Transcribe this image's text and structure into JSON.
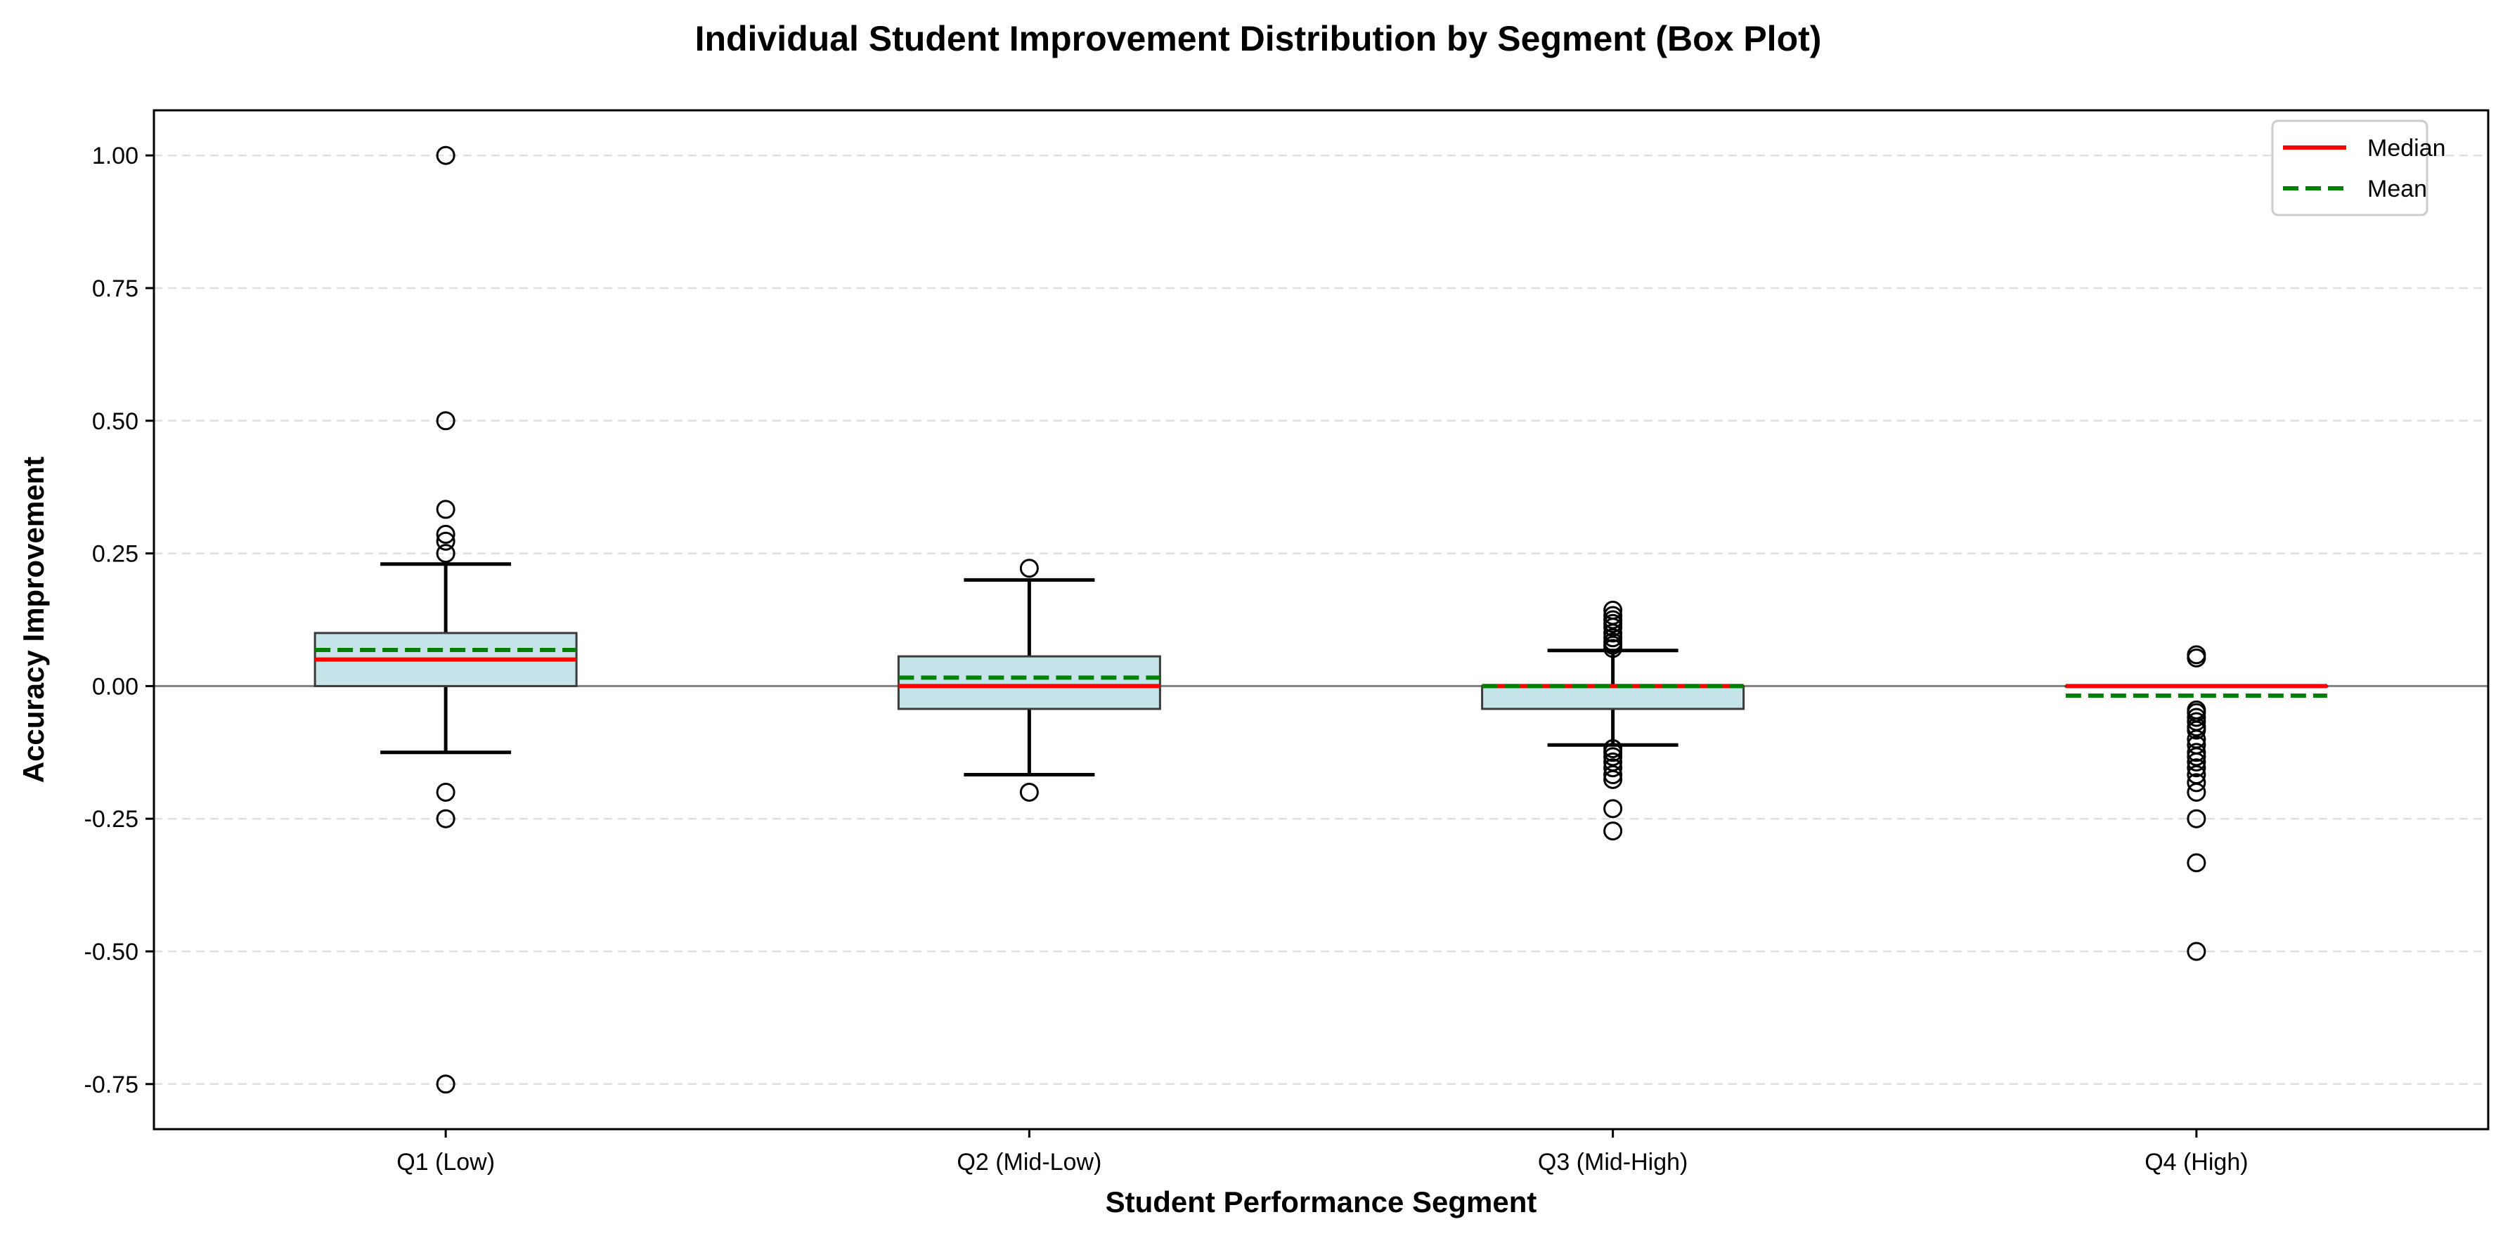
{
  "chart_data": {
    "type": "box",
    "title": "Individual Student Improvement Distribution by Segment (Box Plot)",
    "xlabel": "Student Performance Segment",
    "ylabel": "Accuracy Improvement",
    "ylim": [
      -0.835,
      1.085
    ],
    "yticks": [
      1.0,
      0.75,
      0.5,
      0.25,
      0.0,
      -0.25,
      -0.5,
      -0.75
    ],
    "ytick_labels": [
      "1.00",
      "0.75",
      "0.50",
      "0.25",
      "0.00",
      "-0.25",
      "-0.50",
      "-0.75"
    ],
    "grid": "y-dashed",
    "reference_line": 0.0,
    "legend": {
      "placement": "top-right",
      "entries": [
        {
          "label": "Median",
          "color": "#ff0000",
          "style": "solid"
        },
        {
          "label": "Mean",
          "color": "#008000",
          "style": "dashed"
        }
      ]
    },
    "colors": {
      "box_fill": "#c5e4ea",
      "box_edge": "#3a3a3a",
      "median": "#ff0000",
      "mean": "#008000",
      "whisker": "#000000"
    },
    "categories": [
      "Q1 (Low)",
      "Q2 (Mid-Low)",
      "Q3 (Mid-High)",
      "Q4 (High)"
    ],
    "boxes": [
      {
        "category": "Q1 (Low)",
        "q1": 0.0,
        "median": 0.05,
        "q3": 0.1,
        "mean": 0.068,
        "whisker_low": -0.125,
        "whisker_high": 0.23,
        "outliers": [
          1.0,
          0.5,
          0.333,
          0.286,
          0.273,
          0.25,
          -0.2,
          -0.25,
          -0.75
        ]
      },
      {
        "category": "Q2 (Mid-Low)",
        "q1": -0.043,
        "median": 0.0,
        "q3": 0.056,
        "mean": 0.016,
        "whisker_low": -0.167,
        "whisker_high": 0.2,
        "outliers": [
          0.222,
          -0.2
        ]
      },
      {
        "category": "Q3 (Mid-High)",
        "q1": -0.043,
        "median": 0.0,
        "q3": 0.0,
        "mean": 0.0,
        "whisker_low": -0.111,
        "whisker_high": 0.067,
        "outliers": [
          0.143,
          0.133,
          0.125,
          0.118,
          0.111,
          0.1,
          0.091,
          0.083,
          0.077,
          0.071,
          -0.118,
          -0.125,
          -0.133,
          -0.143,
          -0.154,
          -0.167,
          -0.176,
          -0.231,
          -0.273
        ]
      },
      {
        "category": "Q4 (High)",
        "q1": 0.0,
        "median": 0.0,
        "q3": 0.0,
        "mean": -0.018,
        "whisker_low": 0.0,
        "whisker_high": 0.0,
        "outliers": [
          0.059,
          0.053,
          -0.045,
          -0.05,
          -0.059,
          -0.067,
          -0.077,
          -0.083,
          -0.1,
          -0.111,
          -0.125,
          -0.133,
          -0.143,
          -0.154,
          -0.167,
          -0.182,
          -0.2,
          -0.25,
          -0.333,
          -0.5
        ]
      }
    ]
  }
}
